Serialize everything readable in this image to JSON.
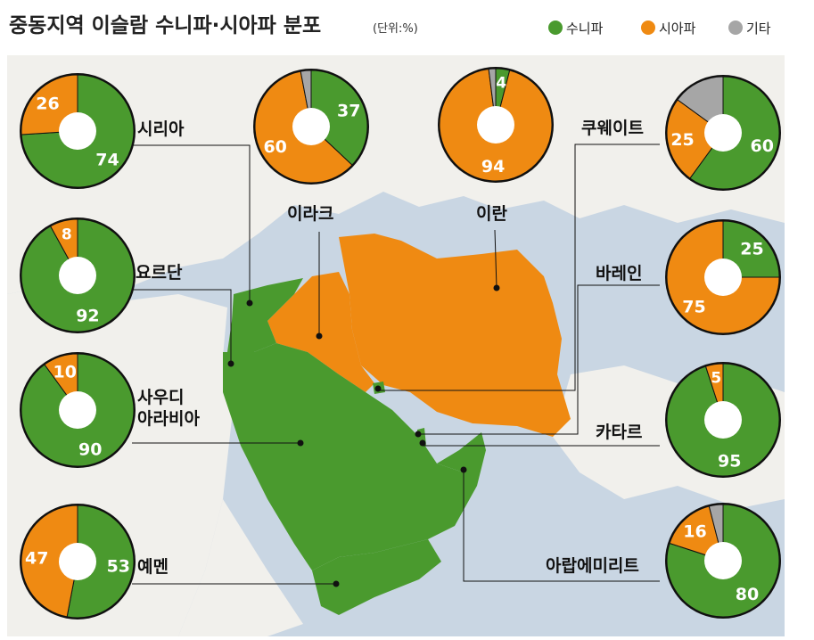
{
  "header": {
    "title": "중동지역 이슬람 수니파·시아파 분포",
    "unit": "(단위:%)"
  },
  "legend": [
    {
      "label": "수니파",
      "color": "#4a9a2e"
    },
    {
      "label": "시아파",
      "color": "#ef8a12"
    },
    {
      "label": "기타",
      "color": "#a6a6a6"
    }
  ],
  "colors": {
    "sunni": "#4a9a2e",
    "shia": "#ef8a12",
    "other": "#a6a6a6",
    "sea": "#c9d6e3",
    "land": "#f1f0ec"
  },
  "chart_data": [
    {
      "type": "pie",
      "title": "시리아",
      "categories": [
        "수니파",
        "시아파",
        "기타"
      ],
      "values": [
        74,
        26,
        0
      ],
      "labels": [
        "74",
        "26",
        ""
      ]
    },
    {
      "type": "pie",
      "title": "이라크",
      "categories": [
        "수니파",
        "시아파",
        "기타"
      ],
      "values": [
        37,
        60,
        3
      ],
      "labels": [
        "37",
        "60",
        ""
      ]
    },
    {
      "type": "pie",
      "title": "이란",
      "categories": [
        "수니파",
        "시아파",
        "기타"
      ],
      "values": [
        4,
        94,
        2
      ],
      "labels": [
        "4",
        "94",
        ""
      ]
    },
    {
      "type": "pie",
      "title": "쿠웨이트",
      "categories": [
        "수니파",
        "시아파",
        "기타"
      ],
      "values": [
        60,
        25,
        15
      ],
      "labels": [
        "60",
        "25",
        ""
      ]
    },
    {
      "type": "pie",
      "title": "요르단",
      "categories": [
        "수니파",
        "시아파",
        "기타"
      ],
      "values": [
        92,
        8,
        0
      ],
      "labels": [
        "92",
        "8",
        ""
      ]
    },
    {
      "type": "pie",
      "title": "바레인",
      "categories": [
        "수니파",
        "시아파",
        "기타"
      ],
      "values": [
        25,
        75,
        0
      ],
      "labels": [
        "25",
        "75",
        ""
      ]
    },
    {
      "type": "pie",
      "title": "사우디\n아라비아",
      "categories": [
        "수니파",
        "시아파",
        "기타"
      ],
      "values": [
        90,
        10,
        0
      ],
      "labels": [
        "90",
        "10",
        ""
      ]
    },
    {
      "type": "pie",
      "title": "카타르",
      "categories": [
        "수니파",
        "시아파",
        "기타"
      ],
      "values": [
        95,
        5,
        0
      ],
      "labels": [
        "95",
        "5",
        ""
      ]
    },
    {
      "type": "pie",
      "title": "예멘",
      "categories": [
        "수니파",
        "시아파",
        "기타"
      ],
      "values": [
        53,
        47,
        0
      ],
      "labels": [
        "53",
        "47",
        ""
      ]
    },
    {
      "type": "pie",
      "title": "아랍에미리트",
      "categories": [
        "수니파",
        "시아파",
        "기타"
      ],
      "values": [
        80,
        16,
        4
      ],
      "labels": [
        "80",
        "16",
        ""
      ]
    }
  ]
}
